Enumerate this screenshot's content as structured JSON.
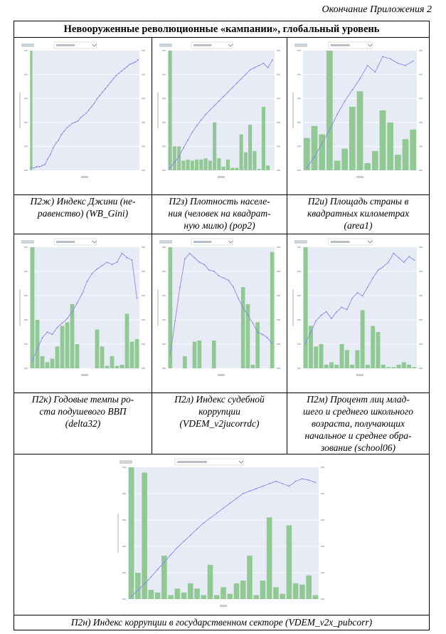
{
  "header": {
    "continuation": "Окончание Приложения 2"
  },
  "table": {
    "title": "Невооруженные революционные «кампании», глобальный уровень"
  },
  "colors": {
    "bar": "#90c993",
    "line": "#8f86ee",
    "plot_bg": "#e7ebf5"
  },
  "captions": [
    {
      "id": "p2zh",
      "lines": [
        "П2ж) Индекс Джини (не-",
        "равенство) (WB_Gini)"
      ]
    },
    {
      "id": "p2z",
      "lines": [
        "П2з) Плотность населе-",
        "ния (человек на квадрат-",
        "ную милю) (pop2)"
      ]
    },
    {
      "id": "p2i",
      "lines": [
        "П2и) Площадь страны в",
        "квадратных километрах",
        "(area1)"
      ]
    },
    {
      "id": "p2k",
      "lines": [
        "П2к) Годовые темпы ро-",
        "ста подушевого ВВП",
        "(delta32)"
      ]
    },
    {
      "id": "p2l",
      "lines": [
        "П2л) Индекс судебной",
        "коррупции",
        "(VDEM_v2jucorrdc)"
      ]
    },
    {
      "id": "p2m",
      "lines": [
        "П2м) Процент лиц млад-",
        "шего и среднего школьного",
        "возраста, получающих",
        "начальное и среднее обра-",
        "зование (school06)"
      ]
    },
    {
      "id": "p2n",
      "lines": [
        "П2н) Индекс коррупции в государственном секторе (VDEM_v2x_pubcorr)"
      ]
    }
  ],
  "chart_data": [
    {
      "type": "bar",
      "id": "p2zh",
      "bars": [
        100,
        0,
        0,
        0,
        0,
        0,
        0,
        0,
        0,
        0,
        0,
        0,
        0,
        0,
        0,
        0,
        0,
        0,
        0,
        0,
        0,
        0,
        0,
        0,
        0,
        0,
        0,
        0,
        0,
        0,
        0,
        0,
        0,
        0,
        0,
        0,
        0,
        0,
        0,
        0
      ],
      "line": [
        0,
        0,
        1,
        1,
        2,
        3,
        8,
        12,
        18,
        22,
        25,
        30,
        33,
        36,
        38,
        40,
        41,
        42,
        45,
        47,
        49,
        52,
        55,
        58,
        62,
        65,
        68,
        71,
        74,
        77,
        80,
        83,
        85,
        87,
        89,
        91,
        93,
        94,
        95,
        97
      ]
    },
    {
      "type": "bar",
      "id": "p2z",
      "bars": [
        100,
        20,
        20,
        8,
        9,
        8,
        9,
        9,
        10,
        8,
        40,
        10,
        3,
        9,
        2,
        2,
        30,
        15,
        38,
        16,
        1,
        53,
        4,
        0
      ],
      "line": [
        0,
        5,
        10,
        18,
        25,
        32,
        38,
        43,
        48,
        52,
        56,
        60,
        64,
        68,
        72,
        76,
        80,
        84,
        88,
        90,
        92,
        94,
        90,
        97
      ]
    },
    {
      "type": "bar",
      "id": "p2i",
      "bars": [
        27,
        37,
        30,
        100,
        8,
        18,
        53,
        66,
        6,
        16,
        50,
        40,
        13,
        26,
        34
      ],
      "line": [
        0,
        10,
        22,
        34,
        48,
        60,
        70,
        80,
        92,
        86,
        100,
        98,
        94,
        92,
        96
      ]
    },
    {
      "type": "bar",
      "id": "p2k",
      "bars": [
        100,
        40,
        10,
        5,
        8,
        18,
        35,
        38,
        53,
        20,
        0,
        0,
        0,
        32,
        18,
        2,
        10,
        2,
        3,
        45,
        22,
        24
      ],
      "line": [
        5,
        15,
        25,
        30,
        28,
        34,
        38,
        42,
        48,
        56,
        64,
        75,
        82,
        86,
        89,
        92,
        90,
        92,
        100,
        96,
        94,
        60
      ]
    },
    {
      "type": "bar",
      "id": "p2l",
      "bars": [
        100,
        0,
        0,
        10,
        0,
        22,
        23,
        0,
        0,
        23,
        0,
        0,
        0,
        0,
        0,
        67,
        53,
        3,
        38,
        0,
        0,
        96
      ],
      "line": [
        10,
        40,
        70,
        95,
        100,
        96,
        92,
        90,
        85,
        84,
        80,
        78,
        76,
        70,
        60,
        52,
        45,
        38,
        30,
        28,
        25,
        20
      ]
    },
    {
      "type": "bar",
      "id": "p2m",
      "bars": [
        100,
        35,
        18,
        20,
        3,
        5,
        3,
        20,
        15,
        3,
        15,
        48,
        3,
        35,
        30,
        3,
        1,
        1,
        3,
        5,
        3,
        1
      ],
      "line": [
        20,
        30,
        40,
        45,
        48,
        42,
        48,
        52,
        50,
        60,
        65,
        62,
        70,
        78,
        85,
        88,
        92,
        100,
        96,
        92,
        97,
        94
      ]
    },
    {
      "type": "bar",
      "id": "p2n",
      "bars": [
        100,
        20,
        96,
        7,
        5,
        33,
        3,
        8,
        5,
        12,
        8,
        3,
        26,
        3,
        9,
        4,
        12,
        14,
        33,
        3,
        14,
        62,
        9,
        4,
        56,
        12,
        11,
        18,
        3
      ],
      "line": [
        0,
        5,
        10,
        16,
        22,
        28,
        34,
        40,
        45,
        50,
        55,
        60,
        64,
        68,
        72,
        76,
        80,
        84,
        86,
        88,
        90,
        92,
        94,
        92,
        90,
        94,
        96,
        95,
        93
      ]
    }
  ]
}
